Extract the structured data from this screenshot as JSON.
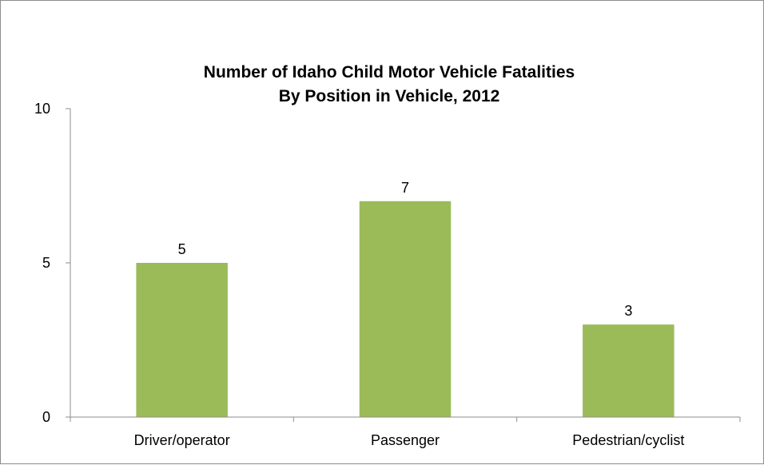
{
  "chart_data": {
    "type": "bar",
    "title": [
      "Number of Idaho Child Motor Vehicle Fatalities",
      "By Position in Vehicle, 2012"
    ],
    "categories": [
      "Driver/operator",
      "Passenger",
      "Pedestrian/cyclist"
    ],
    "values": [
      5,
      7,
      3
    ],
    "data_labels": [
      "5",
      "7",
      "3"
    ],
    "ylim": [
      0,
      10
    ],
    "yticks": [
      0,
      5,
      10
    ],
    "ytick_labels": [
      "0",
      "5",
      "10"
    ],
    "xlabel": "",
    "ylabel": "",
    "grid": false,
    "legend": "none",
    "bar_color": "#9bbb59"
  }
}
